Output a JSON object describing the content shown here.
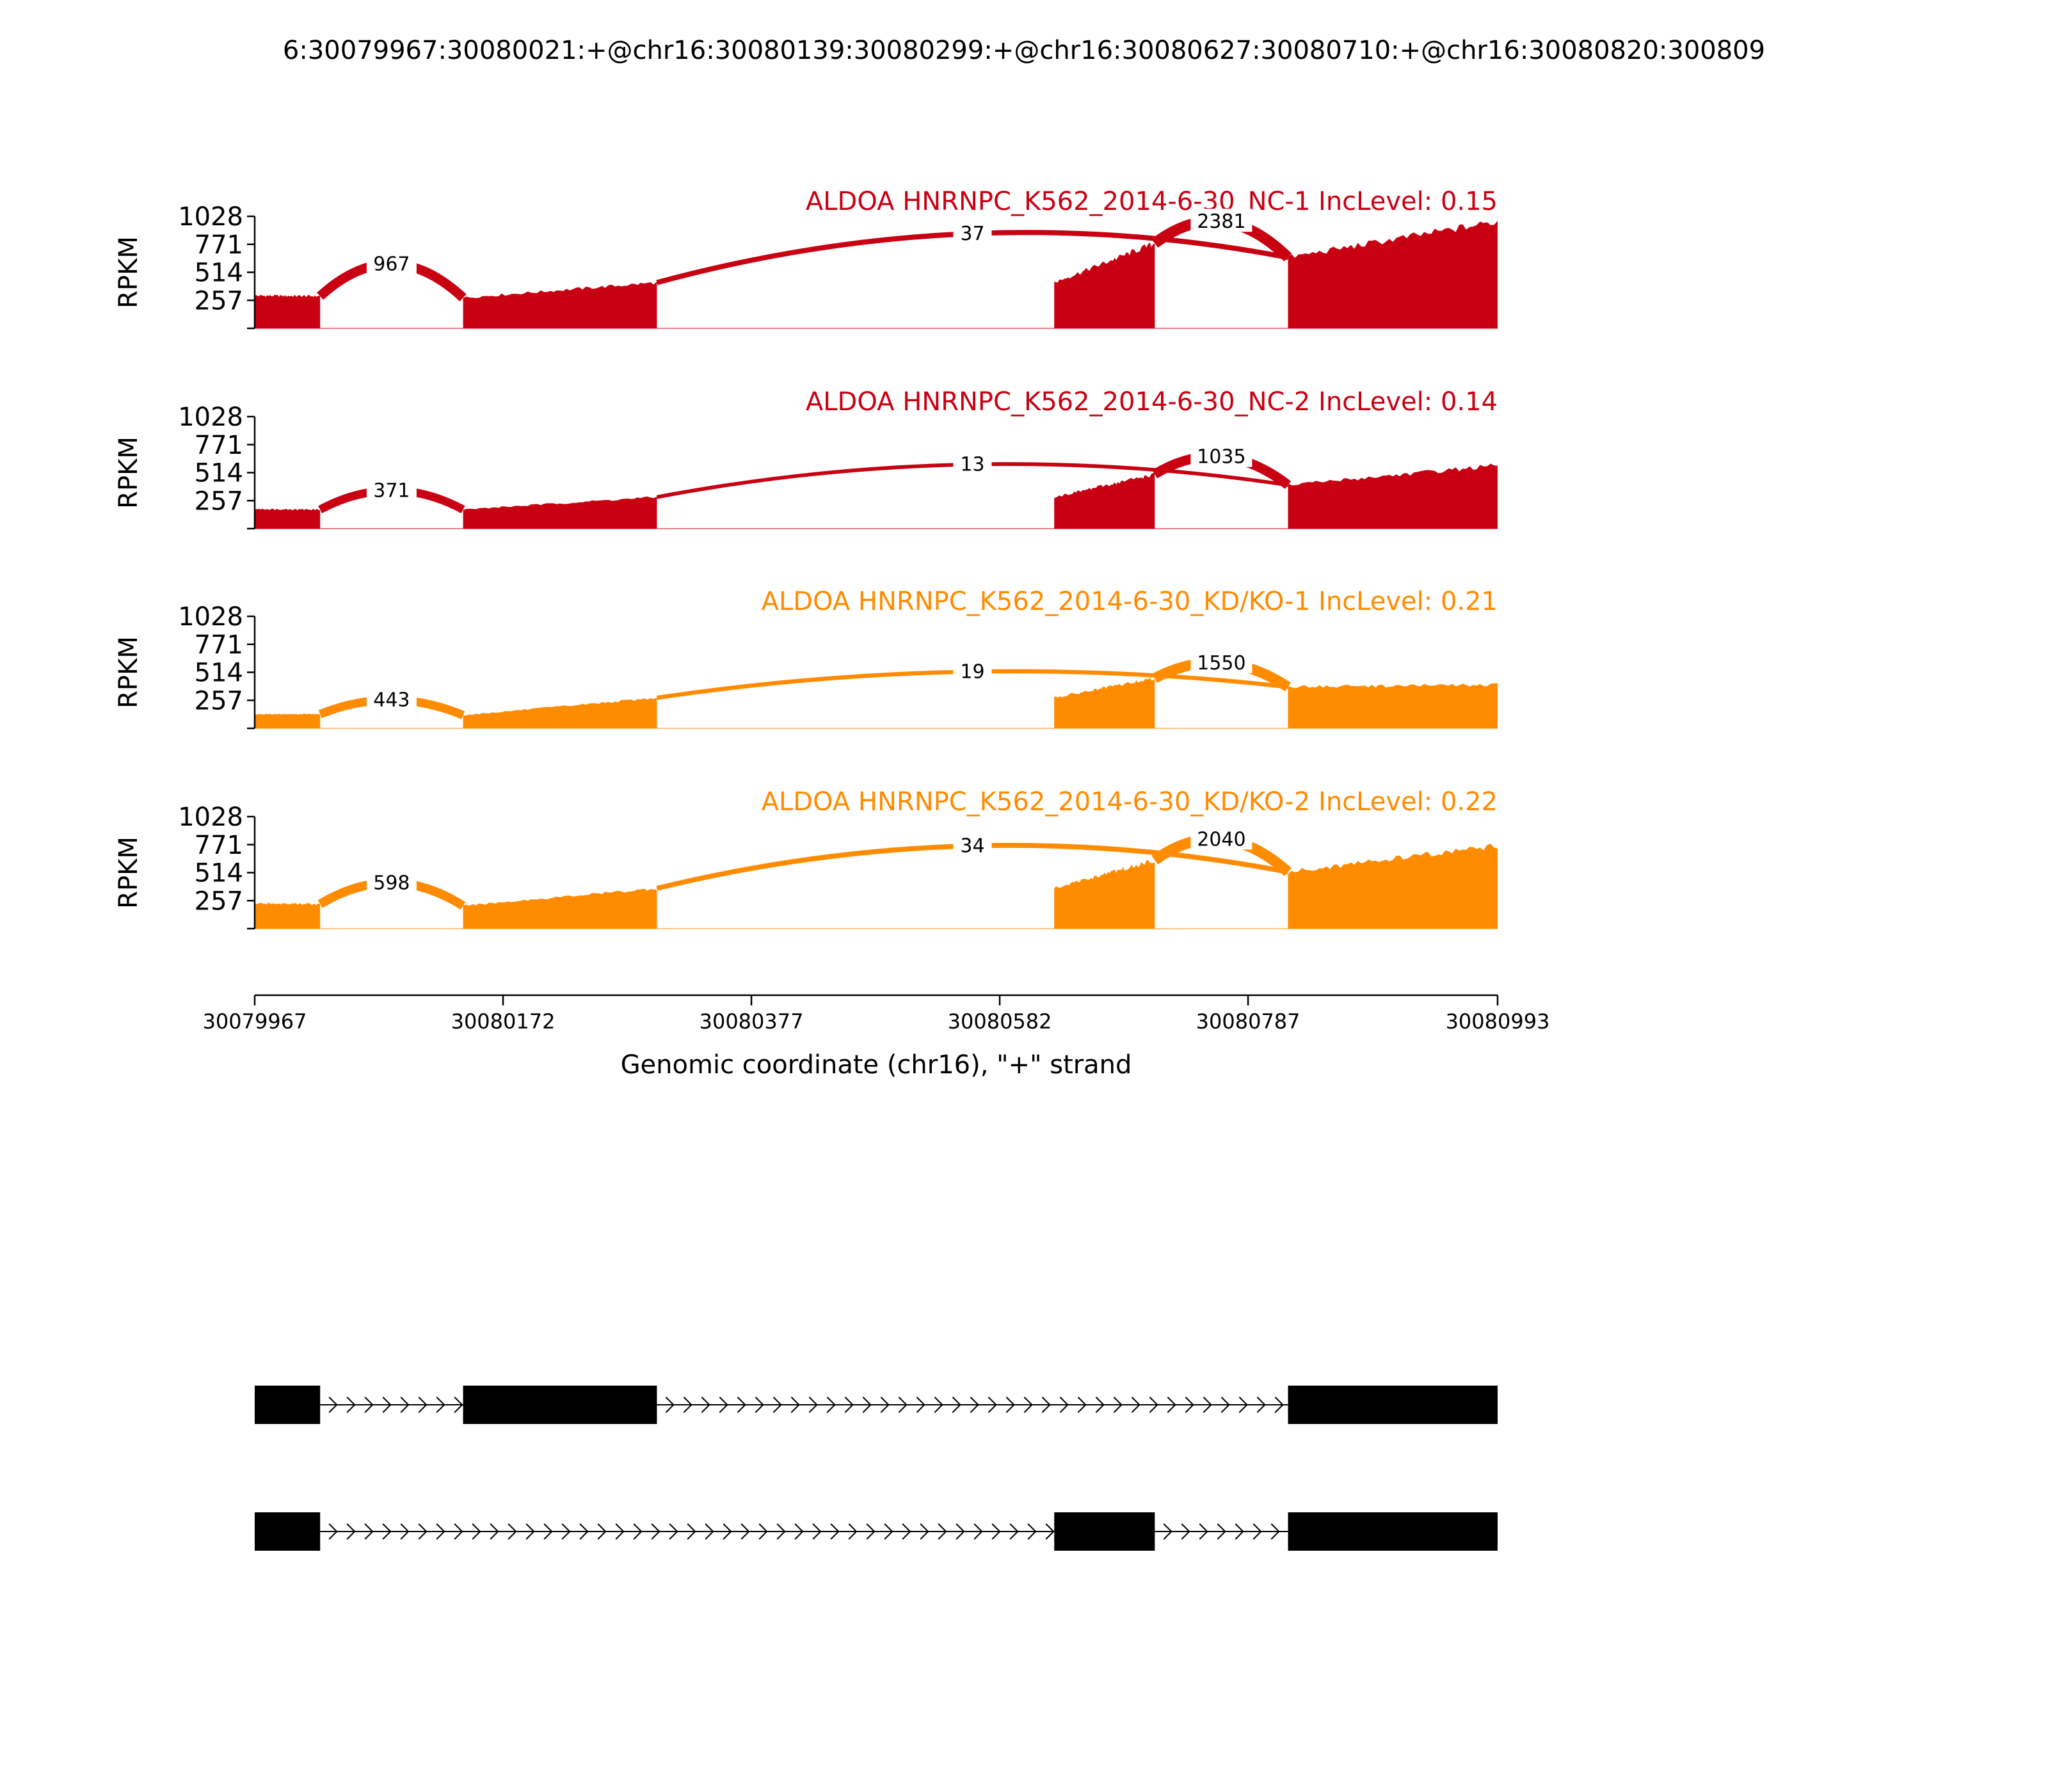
{
  "title": "6:30079967:30080021:+@chr16:30080139:30080299:+@chr16:30080627:30080710:+@chr16:30080820:300809",
  "chart_data": {
    "type": "area",
    "x_range": [
      30079967,
      30080993
    ],
    "xticks": [
      30079967,
      30080172,
      30080377,
      30080582,
      30080787,
      30080993
    ],
    "xlabel": "Genomic coordinate (chr16), \"+\" strand",
    "ylabel": "RPKM",
    "ylim": [
      0,
      1028
    ],
    "yticks": [
      257,
      514,
      771,
      1028
    ],
    "exons": [
      [
        30079967,
        30080021
      ],
      [
        30080139,
        30080299
      ],
      [
        30080627,
        30080710
      ],
      [
        30080820,
        30080993
      ]
    ],
    "tracks": [
      {
        "label": "ALDOA HNRNPC_K562_2014-6-30_NC-1 IncLevel: 0.15",
        "color": "#c80012",
        "coverage": [
          [
            30079967,
            300
          ],
          [
            30080021,
            295
          ],
          [
            30080139,
            280
          ],
          [
            30080299,
            420
          ],
          [
            30080627,
            420
          ],
          [
            30080710,
            780
          ],
          [
            30080820,
            650
          ],
          [
            30080993,
            980
          ]
        ],
        "junctions": [
          {
            "start": 30080021,
            "end": 30080139,
            "reads": 967,
            "peak": 590
          },
          {
            "start": 30080299,
            "end": 30080820,
            "reads": 37,
            "peak": 870
          },
          {
            "start": 30080710,
            "end": 30080820,
            "reads": 2381,
            "peak": 980
          }
        ]
      },
      {
        "label": "ALDOA HNRNPC_K562_2014-6-30_NC-2 IncLevel: 0.14",
        "color": "#c80012",
        "coverage": [
          [
            30079967,
            180
          ],
          [
            30080021,
            175
          ],
          [
            30080139,
            175
          ],
          [
            30080299,
            290
          ],
          [
            30080627,
            290
          ],
          [
            30080710,
            500
          ],
          [
            30080820,
            400
          ],
          [
            30080993,
            580
          ]
        ],
        "junctions": [
          {
            "start": 30080021,
            "end": 30080139,
            "reads": 371,
            "peak": 350
          },
          {
            "start": 30080299,
            "end": 30080820,
            "reads": 13,
            "peak": 590
          },
          {
            "start": 30080710,
            "end": 30080820,
            "reads": 1035,
            "peak": 660
          }
        ]
      },
      {
        "label": "ALDOA HNRNPC_K562_2014-6-30_KD/KO-1 IncLevel: 0.21",
        "color": "#ff8b00",
        "coverage": [
          [
            30079967,
            130
          ],
          [
            30080021,
            130
          ],
          [
            30080139,
            120
          ],
          [
            30080299,
            280
          ],
          [
            30080627,
            280
          ],
          [
            30080710,
            460
          ],
          [
            30080820,
            380
          ],
          [
            30080993,
            400
          ]
        ],
        "junctions": [
          {
            "start": 30080021,
            "end": 30080139,
            "reads": 443,
            "peak": 260
          },
          {
            "start": 30080299,
            "end": 30080820,
            "reads": 19,
            "peak": 520
          },
          {
            "start": 30080710,
            "end": 30080820,
            "reads": 1550,
            "peak": 600
          }
        ]
      },
      {
        "label": "ALDOA HNRNPC_K562_2014-6-30_KD/KO-2 IncLevel: 0.22",
        "color": "#ff8b00",
        "coverage": [
          [
            30079967,
            230
          ],
          [
            30080021,
            225
          ],
          [
            30080139,
            210
          ],
          [
            30080299,
            370
          ],
          [
            30080627,
            370
          ],
          [
            30080710,
            630
          ],
          [
            30080820,
            520
          ],
          [
            30080993,
            760
          ]
        ],
        "junctions": [
          {
            "start": 30080021,
            "end": 30080139,
            "reads": 598,
            "peak": 420
          },
          {
            "start": 30080299,
            "end": 30080820,
            "reads": 34,
            "peak": 760
          },
          {
            "start": 30080710,
            "end": 30080820,
            "reads": 2040,
            "peak": 820
          }
        ]
      }
    ],
    "isoforms": [
      {
        "exons": [
          [
            30079967,
            30080021
          ],
          [
            30080139,
            30080299
          ],
          [
            30080820,
            30080993
          ]
        ]
      },
      {
        "exons": [
          [
            30079967,
            30080021
          ],
          [
            30080627,
            30080710
          ],
          [
            30080820,
            30080993
          ]
        ]
      }
    ]
  }
}
